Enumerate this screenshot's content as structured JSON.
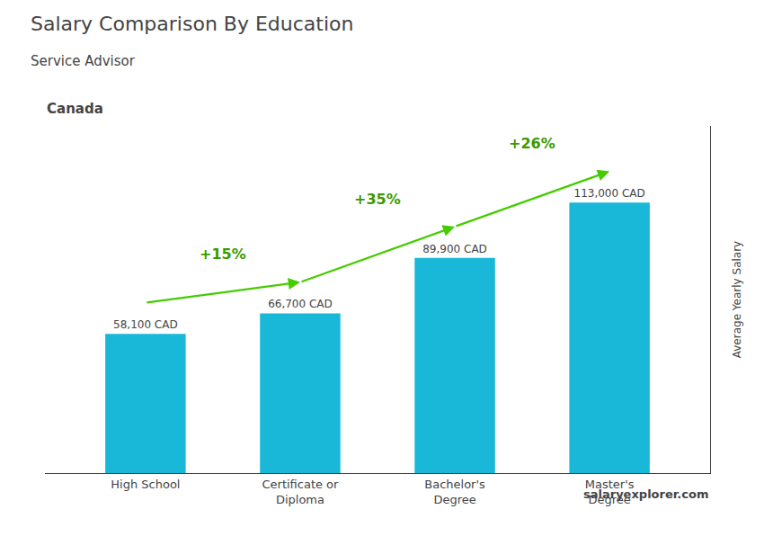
{
  "chart_data": {
    "type": "bar",
    "title": "Salary Comparison By Education",
    "subtitle": "Service Advisor",
    "ylabel": "Average Yearly Salary",
    "categories": [
      "High School",
      "Certificate or\nDiploma",
      "Bachelor's\nDegree",
      "Master's\nDegree"
    ],
    "values": [
      58100,
      66700,
      89900,
      113000
    ],
    "value_labels": [
      "58,100 CAD",
      "66,700 CAD",
      "89,900 CAD",
      "113,000 CAD"
    ],
    "data_labels": true,
    "change_labels": [
      "+15%",
      "+35%",
      "+26%"
    ],
    "annotations": [
      "Canada",
      "salaryexplorer.com"
    ],
    "color": "#1ab8d8",
    "ylim": [
      0,
      145000
    ],
    "tick_labels": "x",
    "grid": false
  }
}
